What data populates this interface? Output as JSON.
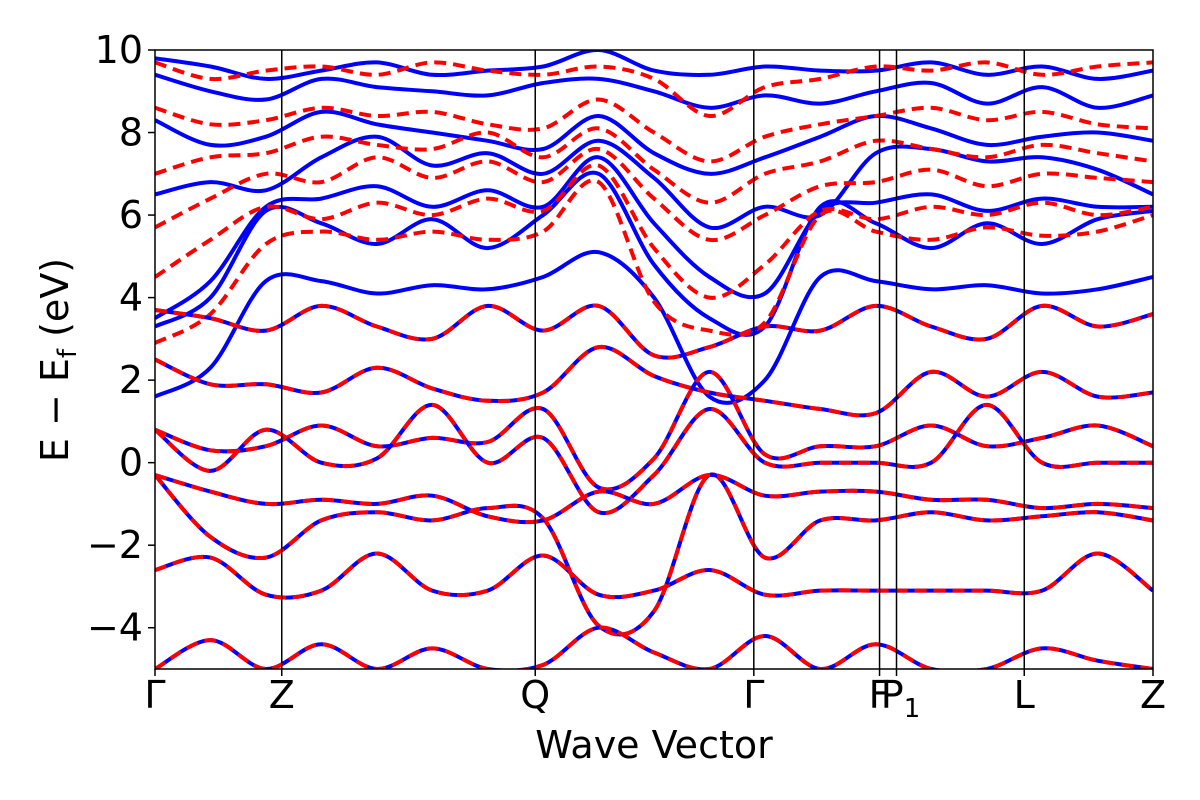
{
  "chart_data": {
    "type": "line",
    "title": "",
    "xlabel": "Wave Vector",
    "ylabel": {
      "main": "E − E",
      "sub": "f",
      "unit": " (eV)"
    },
    "ylim": [
      -5,
      10
    ],
    "yticks": [
      {
        "value": -4,
        "label": "−4"
      },
      {
        "value": -2,
        "label": "−2"
      },
      {
        "value": 0,
        "label": "0"
      },
      {
        "value": 2,
        "label": "2"
      },
      {
        "value": 4,
        "label": "4"
      },
      {
        "value": 6,
        "label": "6"
      },
      {
        "value": 8,
        "label": "8"
      },
      {
        "value": 10,
        "label": "10"
      }
    ],
    "xlim": [
      0,
      1
    ],
    "kpoints": [
      {
        "pos": 0.0,
        "label": "Γ",
        "sub": ""
      },
      {
        "pos": 0.127,
        "label": "Z",
        "sub": ""
      },
      {
        "pos": 0.381,
        "label": "Q",
        "sub": ""
      },
      {
        "pos": 0.6,
        "label": "Γ",
        "sub": ""
      },
      {
        "pos": 0.726,
        "label": "F",
        "sub": ""
      },
      {
        "pos": 0.743,
        "label": "P",
        "sub": "1"
      },
      {
        "pos": 0.871,
        "label": "L",
        "sub": ""
      },
      {
        "pos": 1.0,
        "label": "Z",
        "sub": ""
      }
    ],
    "series_styles": [
      {
        "name": "blue-solid",
        "color": "#0000ff",
        "dash": "none"
      },
      {
        "name": "red-dashed",
        "color": "#ff0000",
        "dash": "12,7"
      }
    ],
    "shared_bands": [
      [
        -2.6,
        -2.3,
        -3.2,
        -3.1,
        -2.2,
        -3.1,
        -3.1,
        -2.25,
        -3.2,
        -3.1,
        -2.6,
        -3.2,
        -3.1,
        -3.1,
        -3.1,
        -3.1,
        -3.1,
        -2.2,
        -3.1
      ],
      [
        -0.3,
        -1.8,
        -2.3,
        -1.4,
        -1.2,
        -1.4,
        -1.1,
        -1.35,
        -3.95,
        -3.6,
        -0.3,
        -2.3,
        -1.4,
        -1.4,
        -1.2,
        -1.4,
        -1.3,
        -1.2,
        -1.4
      ],
      [
        0.8,
        0.3,
        0.4,
        0.9,
        0.4,
        0.6,
        0.5,
        1.3,
        -0.6,
        0.1,
        2.2,
        0.2,
        0.4,
        0.4,
        0.9,
        0.4,
        0.6,
        0.9,
        0.4
      ],
      [
        0.8,
        -0.2,
        0.8,
        0.0,
        0.1,
        1.4,
        0.0,
        0.6,
        -1.2,
        -0.3,
        1.3,
        0.0,
        0.0,
        0.0,
        0.0,
        1.4,
        0.0,
        0.0,
        0.0
      ],
      [
        2.5,
        1.9,
        1.9,
        1.7,
        2.3,
        1.8,
        1.5,
        1.7,
        2.8,
        2.1,
        1.7,
        1.5,
        1.3,
        1.2,
        2.2,
        1.6,
        2.2,
        1.6,
        1.7
      ],
      [
        3.7,
        3.5,
        3.2,
        3.8,
        3.3,
        3.0,
        3.8,
        3.2,
        3.8,
        2.6,
        2.8,
        3.3,
        3.2,
        3.8,
        3.3,
        3.0,
        3.8,
        3.3,
        3.6
      ],
      [
        -5.0,
        -4.3,
        -5.0,
        -4.4,
        -5.0,
        -4.5,
        -5.0,
        -4.9,
        -4.0,
        -4.6,
        -5.0,
        -4.2,
        -5.0,
        -4.4,
        -5.0,
        -5.0,
        -4.5,
        -4.8,
        -5.0
      ],
      [
        -0.3,
        -0.7,
        -1.0,
        -0.9,
        -1.0,
        -0.8,
        -1.3,
        -1.4,
        -0.7,
        -1.0,
        -0.3,
        -0.8,
        -0.7,
        -0.7,
        -0.9,
        -0.9,
        -1.1,
        -1.0,
        -1.1
      ]
    ],
    "blue_only_bands": [
      [
        1.6,
        2.3,
        4.4,
        4.4,
        4.1,
        4.3,
        4.2,
        4.5,
        5.1,
        4.0,
        1.6,
        2.0,
        4.5,
        4.4,
        4.2,
        4.3,
        4.1,
        4.2,
        4.5
      ],
      [
        3.3,
        4.0,
        6.1,
        5.8,
        5.3,
        5.9,
        5.2,
        6.0,
        7.0,
        4.8,
        3.5,
        3.3,
        6.2,
        5.8,
        5.2,
        5.8,
        5.3,
        5.9,
        6.1
      ],
      [
        3.5,
        4.4,
        6.2,
        6.4,
        6.7,
        6.2,
        6.6,
        6.2,
        7.4,
        5.8,
        4.5,
        4.1,
        6.1,
        6.3,
        6.5,
        6.1,
        6.4,
        6.2,
        6.2
      ],
      [
        6.5,
        6.8,
        6.6,
        7.4,
        7.9,
        7.2,
        7.5,
        7.0,
        7.8,
        6.9,
        5.7,
        6.2,
        6.0,
        7.5,
        7.6,
        7.3,
        7.4,
        7.1,
        6.5
      ],
      [
        8.3,
        7.7,
        7.9,
        8.5,
        8.2,
        8.0,
        7.8,
        7.6,
        8.4,
        7.5,
        7.0,
        7.4,
        7.9,
        8.4,
        8.1,
        7.7,
        7.9,
        8.0,
        7.8
      ],
      [
        9.4,
        9.0,
        8.8,
        9.3,
        9.1,
        9.0,
        8.9,
        9.2,
        9.3,
        9.0,
        8.6,
        8.9,
        8.7,
        9.0,
        9.2,
        8.7,
        9.1,
        8.6,
        8.9
      ],
      [
        9.8,
        9.6,
        9.3,
        9.5,
        9.7,
        9.4,
        9.5,
        9.6,
        10.0,
        9.5,
        9.4,
        9.6,
        9.5,
        9.5,
        9.7,
        9.4,
        9.6,
        9.3,
        9.5
      ]
    ],
    "red_only_bands": [
      [
        2.9,
        3.6,
        5.3,
        5.6,
        5.4,
        5.6,
        5.4,
        5.6,
        6.8,
        3.9,
        3.2,
        3.4,
        6.0,
        5.6,
        5.4,
        5.7,
        5.5,
        5.6,
        6.0
      ],
      [
        4.5,
        5.4,
        6.2,
        5.9,
        6.3,
        6.0,
        6.4,
        6.1,
        7.2,
        5.2,
        4.0,
        4.8,
        6.1,
        5.9,
        6.2,
        6.0,
        6.3,
        6.0,
        6.2
      ],
      [
        5.7,
        6.4,
        7.0,
        6.8,
        7.4,
        6.9,
        7.3,
        6.8,
        7.6,
        6.4,
        5.4,
        6.0,
        6.7,
        6.8,
        7.1,
        6.7,
        7.0,
        6.9,
        6.8
      ],
      [
        7.0,
        7.4,
        7.5,
        7.9,
        7.7,
        7.6,
        8.0,
        7.4,
        8.1,
        7.1,
        6.3,
        7.0,
        7.3,
        7.8,
        7.6,
        7.4,
        7.7,
        7.5,
        7.3
      ],
      [
        8.6,
        8.2,
        8.3,
        8.6,
        8.4,
        8.5,
        8.2,
        8.1,
        8.8,
        8.0,
        7.3,
        7.9,
        8.2,
        8.4,
        8.6,
        8.3,
        8.5,
        8.2,
        8.1
      ],
      [
        9.7,
        9.3,
        9.5,
        9.6,
        9.4,
        9.7,
        9.5,
        9.4,
        9.6,
        9.3,
        8.4,
        9.1,
        9.3,
        9.6,
        9.5,
        9.7,
        9.4,
        9.6,
        9.7
      ]
    ]
  }
}
